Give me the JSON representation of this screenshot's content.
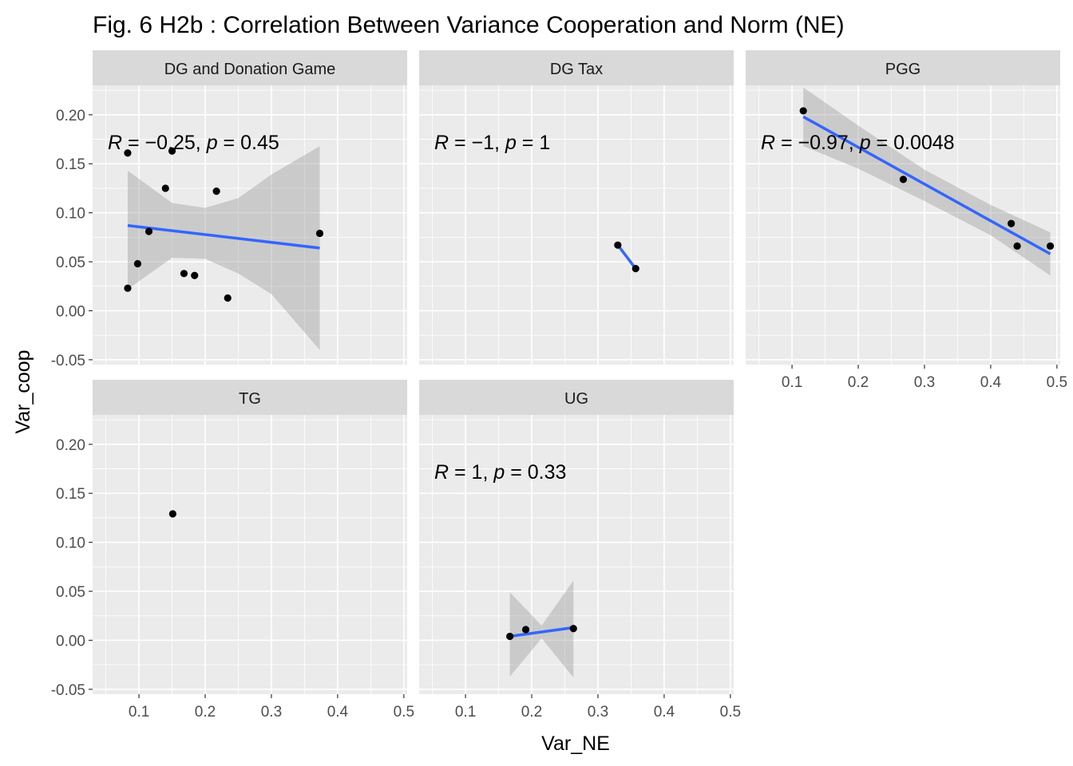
{
  "chart_data": {
    "type": "scatter",
    "title": "Fig. 6 H2b : Correlation Between Variance Cooperation and Norm (NE)",
    "xlabel": "Var_NE",
    "ylabel": "Var_coop",
    "xlim": [
      0.03,
      0.505
    ],
    "ylim": [
      -0.055,
      0.23
    ],
    "x_ticks": [
      0.1,
      0.2,
      0.3,
      0.4,
      0.5
    ],
    "x_tick_labels": [
      "0.1",
      "0.2",
      "0.3",
      "0.4",
      "0.5"
    ],
    "y_ticks": [
      -0.05,
      0.0,
      0.05,
      0.1,
      0.15,
      0.2
    ],
    "y_tick_labels": [
      "-0.05",
      "0.00",
      "0.05",
      "0.10",
      "0.15",
      "0.20"
    ],
    "grid": true,
    "smooth": "lm",
    "colors": {
      "fit_line": "#3366ff",
      "points": "#000000",
      "band": "#999999",
      "panel": "#ebebeb",
      "strip": "#d9d9d9"
    },
    "panels": [
      {
        "name": "DG and Donation Game",
        "stat": {
          "r": "−0.25",
          "p": "0.45"
        },
        "points": [
          {
            "x": 0.083,
            "y": 0.161
          },
          {
            "x": 0.15,
            "y": 0.163
          },
          {
            "x": 0.14,
            "y": 0.125
          },
          {
            "x": 0.217,
            "y": 0.122
          },
          {
            "x": 0.115,
            "y": 0.081
          },
          {
            "x": 0.098,
            "y": 0.048
          },
          {
            "x": 0.083,
            "y": 0.023
          },
          {
            "x": 0.168,
            "y": 0.038
          },
          {
            "x": 0.184,
            "y": 0.036
          },
          {
            "x": 0.234,
            "y": 0.013
          },
          {
            "x": 0.373,
            "y": 0.079
          }
        ],
        "fit": [
          [
            0.083,
            0.087
          ],
          [
            0.373,
            0.064
          ]
        ],
        "band": {
          "x": [
            0.083,
            0.15,
            0.2,
            0.25,
            0.3,
            0.373
          ],
          "lower": [
            0.022,
            0.054,
            0.053,
            0.038,
            0.017,
            -0.04
          ],
          "upper": [
            0.143,
            0.11,
            0.105,
            0.115,
            0.139,
            0.168
          ]
        }
      },
      {
        "name": "DG Tax",
        "stat": {
          "r": "−1",
          "p": "1"
        },
        "points": [
          {
            "x": 0.33,
            "y": 0.067
          },
          {
            "x": 0.357,
            "y": 0.043
          }
        ],
        "fit": [
          [
            0.33,
            0.067
          ],
          [
            0.357,
            0.043
          ]
        ],
        "band": null
      },
      {
        "name": "PGG",
        "stat": {
          "r": "−0.97",
          "p": "0.0048"
        },
        "points": [
          {
            "x": 0.117,
            "y": 0.204
          },
          {
            "x": 0.268,
            "y": 0.134
          },
          {
            "x": 0.431,
            "y": 0.089
          },
          {
            "x": 0.44,
            "y": 0.066
          },
          {
            "x": 0.49,
            "y": 0.066
          }
        ],
        "fit": [
          [
            0.117,
            0.198
          ],
          [
            0.49,
            0.058
          ]
        ],
        "band": {
          "x": [
            0.117,
            0.2,
            0.3,
            0.4,
            0.49
          ],
          "lower": [
            0.168,
            0.145,
            0.112,
            0.077,
            0.036
          ],
          "upper": [
            0.228,
            0.189,
            0.144,
            0.108,
            0.08
          ]
        }
      },
      {
        "name": "TG",
        "stat": null,
        "points": [
          {
            "x": 0.151,
            "y": 0.129
          }
        ],
        "fit": null,
        "band": null
      },
      {
        "name": "UG",
        "stat": {
          "r": "1",
          "p": "0.33"
        },
        "points": [
          {
            "x": 0.167,
            "y": 0.004
          },
          {
            "x": 0.191,
            "y": 0.011
          },
          {
            "x": 0.263,
            "y": 0.012
          }
        ],
        "fit": [
          [
            0.167,
            0.004
          ],
          [
            0.263,
            0.013
          ]
        ],
        "band": {
          "x": [
            0.167,
            0.215,
            0.263
          ],
          "lower": [
            -0.037,
            0.002,
            -0.038
          ],
          "upper": [
            0.049,
            0.015,
            0.061
          ]
        }
      }
    ]
  }
}
